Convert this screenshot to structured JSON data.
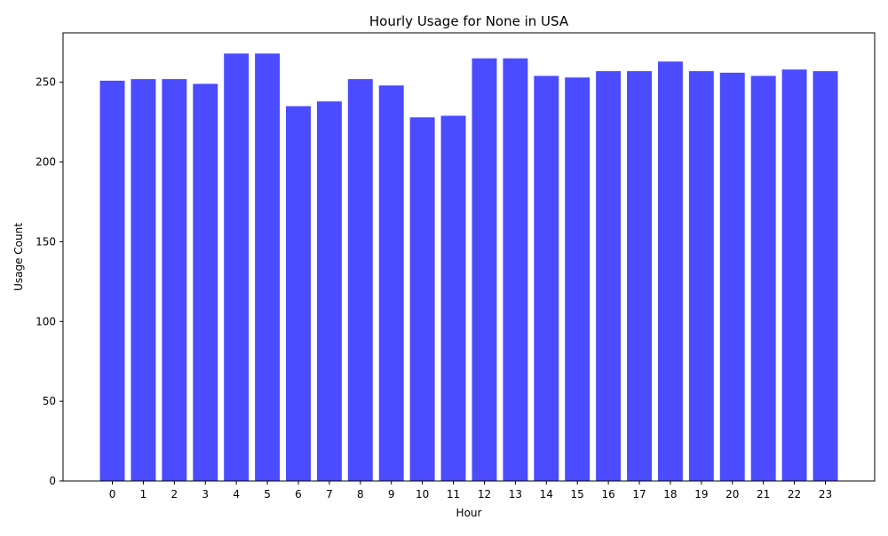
{
  "chart_data": {
    "type": "bar",
    "title": "Hourly Usage for None in USA",
    "xlabel": "Hour",
    "ylabel": "Usage Count",
    "categories": [
      "0",
      "1",
      "2",
      "3",
      "4",
      "5",
      "6",
      "7",
      "8",
      "9",
      "10",
      "11",
      "12",
      "13",
      "14",
      "15",
      "16",
      "17",
      "18",
      "19",
      "20",
      "21",
      "22",
      "23"
    ],
    "values": [
      251,
      252,
      252,
      249,
      268,
      268,
      235,
      238,
      252,
      248,
      228,
      229,
      265,
      265,
      254,
      253,
      257,
      257,
      263,
      257,
      256,
      254,
      258,
      257
    ],
    "ylim": [
      0,
      281
    ],
    "yticks": [
      0,
      50,
      100,
      150,
      200,
      250
    ],
    "bar_color": "#4b4bff",
    "grid": false,
    "legend": "none"
  }
}
